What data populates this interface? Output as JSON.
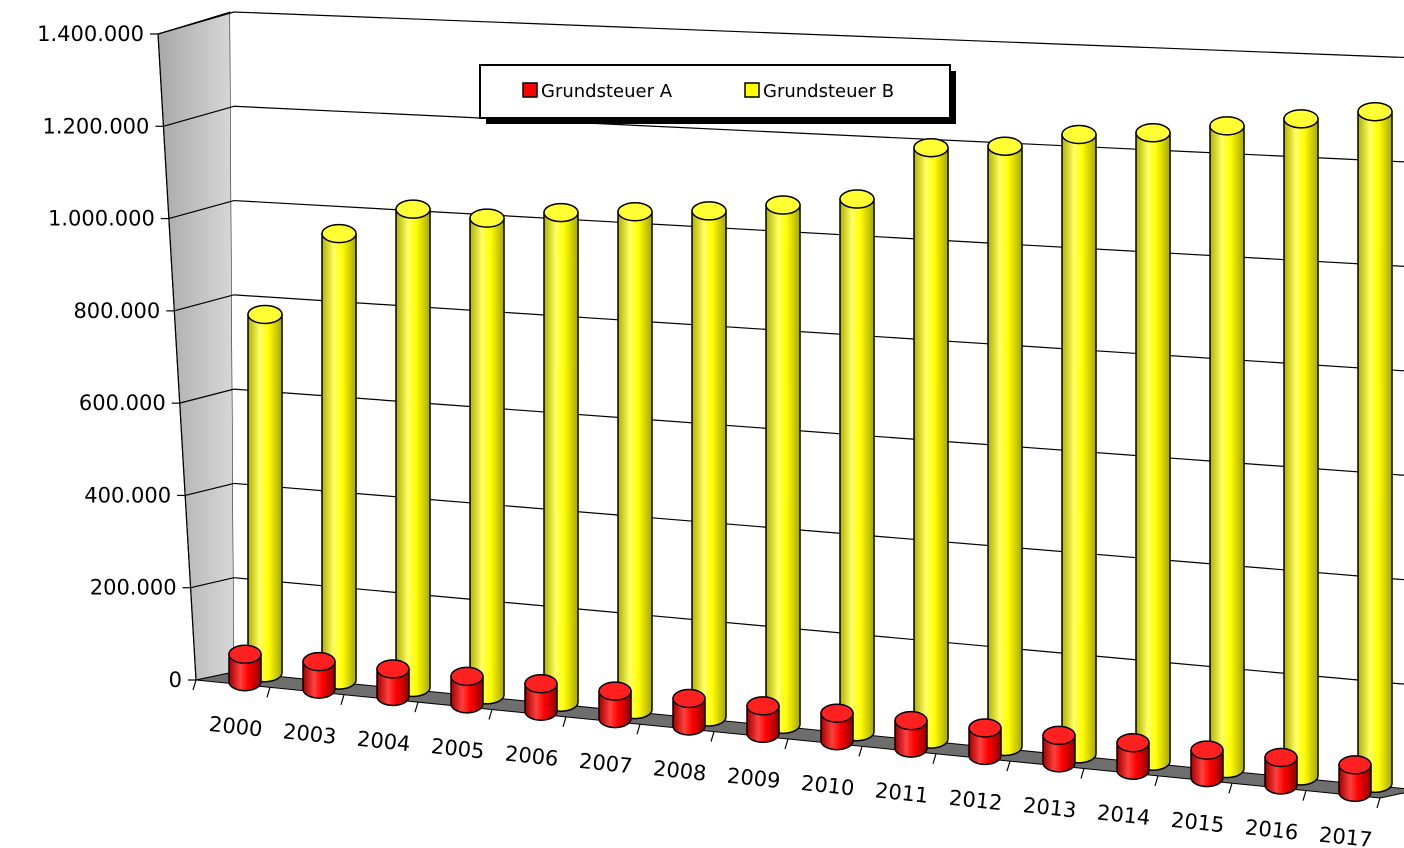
{
  "chart_data": {
    "type": "bar",
    "style": "3d-cylinder",
    "categories": [
      "2000",
      "2003",
      "2004",
      "2005",
      "2006",
      "2007",
      "2008",
      "2009",
      "2010",
      "2011",
      "2012",
      "2013",
      "2014",
      "2015",
      "2016",
      "2017"
    ],
    "series": [
      {
        "name": "Grundsteuer A",
        "color": "#ff0000",
        "values": [
          85000,
          85000,
          85000,
          85000,
          85000,
          85000,
          85000,
          85000,
          85000,
          85000,
          85000,
          85000,
          85000,
          85000,
          85000,
          85000
        ]
      },
      {
        "name": "Grundsteuer B",
        "color": "#ffff00",
        "values": [
          770000,
          950000,
          1010000,
          1000000,
          1020000,
          1030000,
          1040000,
          1060000,
          1080000,
          1190000,
          1200000,
          1230000,
          1240000,
          1260000,
          1280000,
          1300000
        ]
      }
    ],
    "y_ticks": [
      "0",
      "200.000",
      "400.000",
      "600.000",
      "800.000",
      "1.000.000",
      "1.200.000",
      "1.400.000"
    ],
    "ylim": [
      0,
      1400000
    ],
    "grid": true,
    "legend_position": "top-center",
    "colors": {
      "back_wall": "#ffffff",
      "side_wall": "#b0b0b0",
      "floor": "#6e6e6e",
      "gridline": "#000000"
    }
  }
}
